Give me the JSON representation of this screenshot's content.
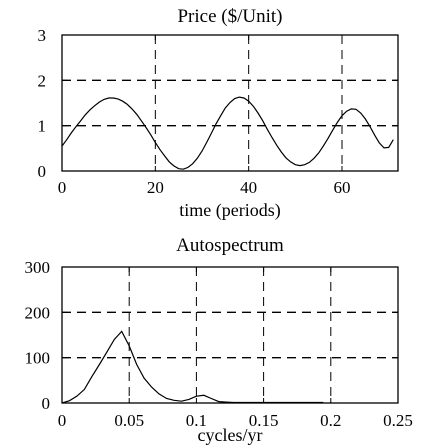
{
  "chart_data": [
    {
      "type": "line",
      "title": "Price ($/Unit)",
      "xlabel": "time (periods)",
      "ylabel": "",
      "xlim": [
        0,
        72
      ],
      "ylim": [
        0,
        3
      ],
      "x_ticks": [
        "0",
        "20",
        "40",
        "60"
      ],
      "y_ticks": [
        "0",
        "1",
        "2",
        "3"
      ],
      "grid": "dashed",
      "series": [
        {
          "x": [
            0,
            1,
            2,
            3,
            4,
            5,
            6,
            7,
            8,
            9,
            10,
            11,
            12,
            13,
            14,
            15,
            16,
            17,
            18,
            19,
            20,
            21,
            22,
            23,
            24,
            25,
            26,
            27,
            28,
            29,
            30,
            31,
            32,
            33,
            34,
            35,
            36,
            37,
            38,
            39,
            40,
            41,
            42,
            43,
            44,
            45,
            46,
            47,
            48,
            49,
            50,
            51,
            52,
            53,
            54,
            55,
            56,
            57,
            58,
            59,
            60,
            61,
            62,
            63,
            64,
            65,
            66,
            67,
            68,
            69,
            70,
            71
          ],
          "values": [
            0.55,
            0.69,
            0.84,
            0.98,
            1.11,
            1.24,
            1.35,
            1.44,
            1.52,
            1.58,
            1.61,
            1.61,
            1.59,
            1.54,
            1.47,
            1.37,
            1.25,
            1.11,
            0.96,
            0.8,
            0.63,
            0.47,
            0.33,
            0.2,
            0.11,
            0.05,
            0.04,
            0.08,
            0.16,
            0.28,
            0.44,
            0.63,
            0.83,
            1.04,
            1.22,
            1.39,
            1.51,
            1.6,
            1.63,
            1.61,
            1.54,
            1.43,
            1.28,
            1.11,
            0.92,
            0.74,
            0.57,
            0.42,
            0.29,
            0.2,
            0.14,
            0.12,
            0.14,
            0.19,
            0.28,
            0.4,
            0.55,
            0.72,
            0.9,
            1.07,
            1.22,
            1.32,
            1.37,
            1.36,
            1.28,
            1.15,
            0.98,
            0.79,
            0.62,
            0.51,
            0.52,
            0.69
          ]
        }
      ]
    },
    {
      "type": "line",
      "title": "Autospectrum",
      "xlabel": "cycles/yr",
      "ylabel": "",
      "xlim": [
        0,
        0.25
      ],
      "ylim": [
        0,
        300
      ],
      "x_ticks": [
        "0",
        "0.05",
        "0.1",
        "0.15",
        "0.2",
        "0.25"
      ],
      "y_ticks": [
        "0",
        "100",
        "200",
        "300"
      ],
      "grid": "dashed",
      "series": [
        {
          "x": [
            0.0,
            0.0056,
            0.0111,
            0.0167,
            0.0222,
            0.0278,
            0.0333,
            0.0389,
            0.0444,
            0.05,
            0.0556,
            0.0611,
            0.0667,
            0.0722,
            0.0778,
            0.0833,
            0.0889,
            0.0944,
            0.1,
            0.1056,
            0.1111,
            0.1167,
            0.1222,
            0.1278,
            0.1333,
            0.1389,
            0.1444,
            0.15,
            0.1556,
            0.1611,
            0.1667,
            0.1722,
            0.1778,
            0.1833,
            0.1889,
            0.1944
          ],
          "values": [
            0,
            5,
            15,
            30,
            58,
            85,
            112,
            140,
            158,
            126,
            85,
            55,
            35,
            20,
            10,
            6,
            4,
            8,
            15,
            17,
            10,
            3,
            2,
            1,
            1,
            1,
            1,
            1,
            1,
            1,
            1,
            1,
            1,
            1,
            1,
            1
          ]
        }
      ]
    }
  ]
}
